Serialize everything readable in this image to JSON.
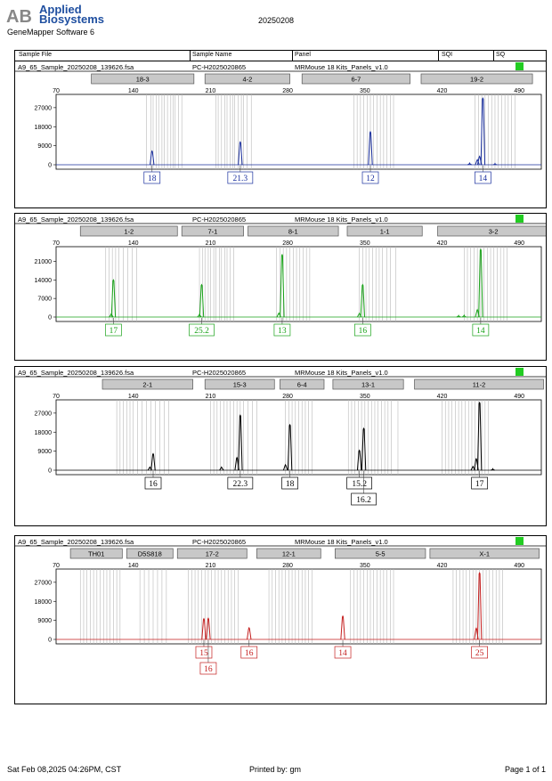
{
  "header": {
    "logo_mark": "AB",
    "company_line1": "Applied",
    "company_line2": "Biosystems",
    "software": "GeneMapper Software 6",
    "report_date": "20250208",
    "columns": [
      "Sample File",
      "Sample Name",
      "Panel",
      "SQI",
      "SQ"
    ]
  },
  "footer": {
    "timestamp": "Sat Feb 08,2025 04:26PM, CST",
    "printed_by": "Printed by: gm",
    "page": "Page 1 of 1"
  },
  "colors": {
    "blue": "#1a2f9e",
    "green": "#1aa31a",
    "black": "#000000",
    "red": "#c41e1e",
    "quality": "#22cc22"
  },
  "chart_data": [
    {
      "type": "line",
      "sample_file": "A9_65_Sample_20250208_139626.fsa",
      "sample_name": "PC-H2025020865",
      "panel": "MRMouse 18 Kits_Panels_v1.0",
      "dye": "blue",
      "x_range": [
        70,
        510
      ],
      "x_ticks": [
        70,
        140,
        210,
        280,
        350,
        420,
        490
      ],
      "y_range": [
        0,
        32000
      ],
      "y_ticks": [
        0,
        9000,
        18000,
        27000
      ],
      "markers": [
        {
          "label": "18-3",
          "range": [
            102,
            195
          ]
        },
        {
          "label": "4-2",
          "range": [
            205,
            282
          ]
        },
        {
          "label": "6-7",
          "range": [
            293,
            391
          ]
        },
        {
          "label": "19-2",
          "range": [
            401,
            502
          ]
        }
      ],
      "bins": [
        152,
        156,
        158,
        161,
        163,
        166,
        168,
        171,
        174,
        176,
        178,
        181,
        184,
        215,
        217,
        220,
        223,
        225,
        228,
        230,
        232,
        235,
        238,
        240,
        243,
        247,
        340,
        343,
        346,
        349,
        352,
        355,
        358,
        361,
        364,
        367,
        370,
        373,
        376,
        450,
        453,
        456,
        459,
        462,
        465,
        468,
        471,
        474,
        477,
        480,
        483,
        486
      ],
      "peaks": [
        {
          "x": 157,
          "y": 6500
        },
        {
          "x": 237,
          "y": 10800
        },
        {
          "x": 355,
          "y": 15600
        },
        {
          "x": 454,
          "y": 4000
        },
        {
          "x": 457,
          "y": 31500
        },
        {
          "x": 452,
          "y": 2400
        },
        {
          "x": 445,
          "y": 800
        },
        {
          "x": 468,
          "y": 600
        }
      ],
      "calls": [
        {
          "x": 157,
          "row": 0,
          "text": "18"
        },
        {
          "x": 237,
          "row": 0,
          "text": "21.3"
        },
        {
          "x": 355,
          "row": 0,
          "text": "12"
        },
        {
          "x": 457,
          "row": 0,
          "text": "14"
        }
      ]
    },
    {
      "type": "line",
      "sample_file": "A9_65_Sample_20250208_139626.fsa",
      "sample_name": "PC-H2025020865",
      "panel": "MRMouse 18 Kits_Panels_v1.0",
      "dye": "green",
      "x_range": [
        70,
        510
      ],
      "x_ticks": [
        70,
        140,
        210,
        280,
        350,
        420,
        490
      ],
      "y_range": [
        0,
        25500
      ],
      "y_ticks": [
        0,
        7000,
        14000,
        21000
      ],
      "markers": [
        {
          "label": "1-2",
          "range": [
            92,
            180
          ]
        },
        {
          "label": "7-1",
          "range": [
            184,
            240
          ]
        },
        {
          "label": "8-1",
          "range": [
            244,
            326
          ]
        },
        {
          "label": "1-1",
          "range": [
            334,
            402
          ]
        },
        {
          "label": "3-2",
          "range": [
            416,
            517
          ]
        }
      ],
      "bins": [
        115,
        118,
        121,
        124,
        127,
        131,
        135,
        139,
        143,
        200,
        203,
        205,
        208,
        210,
        213,
        215,
        218,
        220,
        223,
        225,
        228,
        231,
        270,
        273,
        276,
        279,
        282,
        285,
        288,
        291,
        294,
        297,
        300,
        345,
        348,
        351,
        354,
        357,
        360,
        363,
        366,
        370,
        373,
        378,
        440,
        443,
        446,
        449,
        452,
        455,
        458,
        461,
        464,
        467,
        470,
        473,
        476,
        479
      ],
      "peaks": [
        {
          "x": 122,
          "y": 14000
        },
        {
          "x": 120,
          "y": 1200
        },
        {
          "x": 202,
          "y": 12200
        },
        {
          "x": 200,
          "y": 1000
        },
        {
          "x": 275,
          "y": 23500
        },
        {
          "x": 272,
          "y": 1500
        },
        {
          "x": 348,
          "y": 12200
        },
        {
          "x": 345,
          "y": 1400
        },
        {
          "x": 455,
          "y": 25500
        },
        {
          "x": 452,
          "y": 2800
        },
        {
          "x": 440,
          "y": 700
        },
        {
          "x": 435,
          "y": 600
        }
      ],
      "calls": [
        {
          "x": 122,
          "row": 0,
          "text": "17"
        },
        {
          "x": 202,
          "row": 0,
          "text": "25.2"
        },
        {
          "x": 275,
          "row": 0,
          "text": "13"
        },
        {
          "x": 348,
          "row": 0,
          "text": "16"
        },
        {
          "x": 455,
          "row": 0,
          "text": "14"
        }
      ]
    },
    {
      "type": "line",
      "sample_file": "A9_65_Sample_20250208_139626.fsa",
      "sample_name": "PC-H2025020865",
      "panel": "MRMouse 18 Kits_Panels_v1.0",
      "dye": "black",
      "x_range": [
        70,
        510
      ],
      "x_ticks": [
        70,
        140,
        210,
        280,
        350,
        420,
        490
      ],
      "y_range": [
        0,
        32000
      ],
      "y_ticks": [
        0,
        9000,
        18000,
        27000
      ],
      "markers": [
        {
          "label": "2-1",
          "range": [
            112,
            194
          ]
        },
        {
          "label": "15-3",
          "range": [
            205,
            268
          ]
        },
        {
          "label": "6-4",
          "range": [
            273,
            313
          ]
        },
        {
          "label": "13-1",
          "range": [
            321,
            385
          ]
        },
        {
          "label": "11-2",
          "range": [
            395,
            512
          ]
        }
      ],
      "bins": [
        125,
        128,
        131,
        134,
        137,
        140,
        144,
        148,
        152,
        156,
        160,
        164,
        168,
        172,
        210,
        213,
        216,
        219,
        222,
        225,
        228,
        231,
        234,
        237,
        240,
        244,
        248,
        252,
        278,
        281,
        284,
        287,
        290,
        293,
        296,
        299,
        302,
        335,
        338,
        341,
        344,
        347,
        350,
        353,
        356,
        359,
        362,
        365,
        368,
        371,
        374,
        380,
        420,
        423,
        426,
        429,
        432,
        435,
        438,
        441,
        444,
        447,
        450,
        453,
        456,
        459,
        462
      ],
      "peaks": [
        {
          "x": 158,
          "y": 7800
        },
        {
          "x": 155,
          "y": 1500
        },
        {
          "x": 220,
          "y": 1500
        },
        {
          "x": 237,
          "y": 26000
        },
        {
          "x": 234,
          "y": 6000
        },
        {
          "x": 278,
          "y": 2600
        },
        {
          "x": 282,
          "y": 21500
        },
        {
          "x": 345,
          "y": 9400
        },
        {
          "x": 349,
          "y": 19800
        },
        {
          "x": 451,
          "y": 5400
        },
        {
          "x": 454,
          "y": 32000
        },
        {
          "x": 448,
          "y": 1800
        },
        {
          "x": 466,
          "y": 700
        }
      ],
      "calls": [
        {
          "x": 158,
          "row": 0,
          "text": "16"
        },
        {
          "x": 237,
          "row": 0,
          "text": "22.3"
        },
        {
          "x": 282,
          "row": 0,
          "text": "18"
        },
        {
          "x": 345,
          "row": 0,
          "text": "15.2"
        },
        {
          "x": 349,
          "row": 1,
          "text": "16.2"
        },
        {
          "x": 454,
          "row": 0,
          "text": "17"
        }
      ]
    },
    {
      "type": "line",
      "sample_file": "A9_65_Sample_20250208_139626.fsa",
      "sample_name": "PC-H2025020865",
      "panel": "MRMouse 18 Kits_Panels_v1.0",
      "dye": "red",
      "x_range": [
        70,
        510
      ],
      "x_ticks": [
        70,
        140,
        210,
        280,
        350,
        420,
        490
      ],
      "y_range": [
        0,
        32000
      ],
      "y_ticks": [
        0,
        9000,
        18000,
        27000
      ],
      "markers": [
        {
          "label": "TH01",
          "range": [
            83,
            130
          ]
        },
        {
          "label": "D5S818",
          "range": [
            134,
            176
          ]
        },
        {
          "label": "17-2",
          "range": [
            180,
            243
          ]
        },
        {
          "label": "12-1",
          "range": [
            252,
            310
          ]
        },
        {
          "label": "5-5",
          "range": [
            323,
            405
          ]
        },
        {
          "label": "X-1",
          "range": [
            409,
            508
          ]
        }
      ],
      "bins": [
        92,
        95,
        98,
        101,
        104,
        107,
        110,
        113,
        116,
        119,
        122,
        125,
        128,
        146,
        150,
        154,
        158,
        162,
        166,
        170,
        190,
        193,
        196,
        199,
        202,
        205,
        208,
        211,
        214,
        217,
        220,
        223,
        226,
        229,
        232,
        235,
        263,
        266,
        269,
        272,
        275,
        278,
        281,
        284,
        287,
        290,
        293,
        296,
        299,
        302,
        337,
        340,
        343,
        346,
        349,
        352,
        355,
        358,
        361,
        364,
        367,
        370,
        373,
        376,
        430,
        433,
        436,
        439,
        442,
        445,
        448,
        451,
        454,
        457,
        460,
        463,
        466,
        469,
        472,
        475
      ],
      "peaks": [
        {
          "x": 204,
          "y": 9800
        },
        {
          "x": 208,
          "y": 10000
        },
        {
          "x": 245,
          "y": 5500
        },
        {
          "x": 330,
          "y": 11000
        },
        {
          "x": 451,
          "y": 5300
        },
        {
          "x": 454,
          "y": 31500
        }
      ],
      "calls": [
        {
          "x": 204,
          "row": 0,
          "text": "15"
        },
        {
          "x": 208,
          "row": 1,
          "text": "16"
        },
        {
          "x": 245,
          "row": 0,
          "text": "16"
        },
        {
          "x": 330,
          "row": 0,
          "text": "14"
        },
        {
          "x": 454,
          "row": 0,
          "text": "25"
        }
      ]
    }
  ]
}
